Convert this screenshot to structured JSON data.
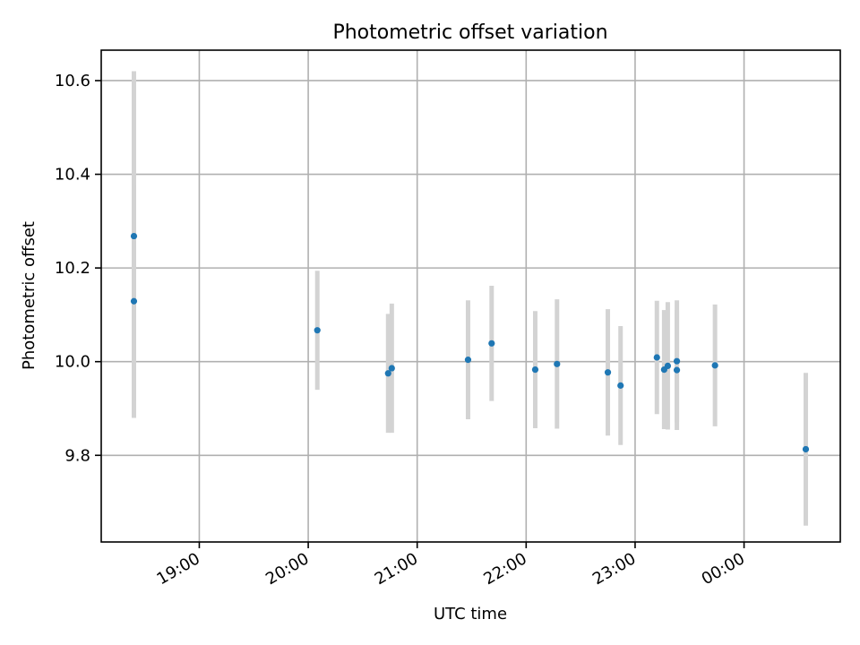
{
  "chart_data": {
    "type": "scatter",
    "title": "Photometric offset variation",
    "xlabel": "UTC time",
    "ylabel": "Photometric offset",
    "x_unit": "UTC clock time (HH:MM)",
    "xlim": [
      "18:06",
      "00:53"
    ],
    "ylim": [
      9.615,
      10.665
    ],
    "x_ticks": [
      "19:00",
      "20:00",
      "21:00",
      "22:00",
      "23:00",
      "00:00"
    ],
    "y_ticks": [
      9.8,
      10.0,
      10.2,
      10.4,
      10.6
    ],
    "y_tick_labels": [
      "9.8",
      "10.0",
      "10.2",
      "10.4",
      "10.6"
    ],
    "grid": true,
    "marker_color": "#1f77b4",
    "errorbar_color": "#d3d3d3",
    "points": [
      {
        "t": "18:24",
        "y": 10.268,
        "err": 0.352
      },
      {
        "t": "18:24",
        "y": 10.129,
        "err": 0.249
      },
      {
        "t": "20:05",
        "y": 10.067,
        "err": 0.127
      },
      {
        "t": "20:44",
        "y": 9.975,
        "err": 0.127
      },
      {
        "t": "20:46",
        "y": 9.986,
        "err": 0.138
      },
      {
        "t": "21:28",
        "y": 10.004,
        "err": 0.127
      },
      {
        "t": "21:41",
        "y": 10.039,
        "err": 0.123
      },
      {
        "t": "22:05",
        "y": 9.983,
        "err": 0.125
      },
      {
        "t": "22:17",
        "y": 9.995,
        "err": 0.138
      },
      {
        "t": "22:45",
        "y": 9.977,
        "err": 0.135
      },
      {
        "t": "22:52",
        "y": 9.949,
        "err": 0.127
      },
      {
        "t": "23:12",
        "y": 10.009,
        "err": 0.121
      },
      {
        "t": "23:16",
        "y": 9.983,
        "err": 0.127
      },
      {
        "t": "23:18",
        "y": 9.991,
        "err": 0.136
      },
      {
        "t": "23:23",
        "y": 9.982,
        "err": 0.128
      },
      {
        "t": "23:23",
        "y": 10.001,
        "err": 0.13
      },
      {
        "t": "23:44",
        "y": 9.992,
        "err": 0.13
      },
      {
        "t": "00:34",
        "y": 9.813,
        "err": 0.163
      }
    ]
  }
}
